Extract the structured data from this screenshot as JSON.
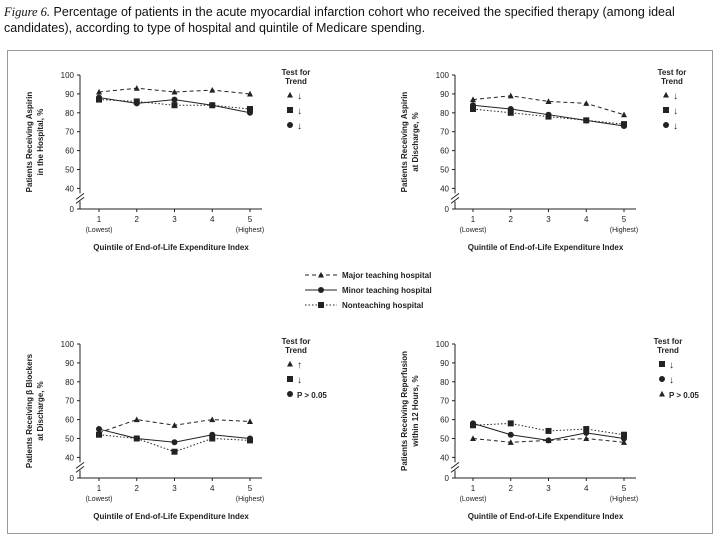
{
  "caption": {
    "label": "Figure 6.",
    "text": "Percentage of patients in the acute myocardial infarction cohort who received the specified therapy (among ideal candidates), according to type of hospital and quintile of Medicare spending."
  },
  "legend": {
    "major": "Major teaching hospital",
    "minor": "Minor teaching hospital",
    "non": "Nonteaching hospital"
  },
  "colors": {
    "line": "#222222",
    "frame": "#9a9a9a"
  },
  "chart_data": [
    {
      "type": "line",
      "ylabel": [
        "Patients Receiving Aspirin",
        "in the Hospital, %"
      ],
      "xlabel": "Quintile of End-of-Life Expenditure Index",
      "x": [
        1,
        2,
        3,
        4,
        5
      ],
      "xticks": [
        "1",
        "2",
        "3",
        "4",
        "5"
      ],
      "xsub": [
        "(Lowest)",
        "",
        "",
        "",
        "(Highest)"
      ],
      "yticks": [
        0,
        40,
        50,
        60,
        70,
        80,
        90,
        100
      ],
      "ylim": [
        0,
        100
      ],
      "series": [
        {
          "name": "Major teaching hospital",
          "values": [
            91,
            93,
            91,
            92,
            90
          ]
        },
        {
          "name": "Minor teaching hospital",
          "values": [
            88,
            85,
            87,
            84,
            80
          ]
        },
        {
          "name": "Nonteaching hospital",
          "values": [
            87,
            86,
            84,
            84,
            82
          ]
        }
      ],
      "trend_title": [
        "Test for",
        "Trend"
      ],
      "trend": [
        {
          "series": "Major teaching hospital",
          "text": "↓"
        },
        {
          "series": "Nonteaching hospital",
          "text": "↓"
        },
        {
          "series": "Minor teaching hospital",
          "text": "↓"
        }
      ]
    },
    {
      "type": "line",
      "ylabel": [
        "Patients Receiving Aspirin",
        "at Discharge, %"
      ],
      "xlabel": "Quintile of End-of-Life Expenditure Index",
      "x": [
        1,
        2,
        3,
        4,
        5
      ],
      "xticks": [
        "1",
        "2",
        "3",
        "4",
        "5"
      ],
      "xsub": [
        "(Lowest)",
        "",
        "",
        "",
        "(Highest)"
      ],
      "yticks": [
        0,
        40,
        50,
        60,
        70,
        80,
        90,
        100
      ],
      "ylim": [
        0,
        100
      ],
      "series": [
        {
          "name": "Major teaching hospital",
          "values": [
            87,
            89,
            86,
            85,
            79
          ]
        },
        {
          "name": "Minor teaching hospital",
          "values": [
            84,
            82,
            79,
            76,
            73
          ]
        },
        {
          "name": "Nonteaching hospital",
          "values": [
            82,
            80,
            78,
            76,
            74
          ]
        }
      ],
      "trend_title": [
        "Test for",
        "Trend"
      ],
      "trend": [
        {
          "series": "Major teaching hospital",
          "text": "↓"
        },
        {
          "series": "Nonteaching hospital",
          "text": "↓"
        },
        {
          "series": "Minor teaching hospital",
          "text": "↓"
        }
      ]
    },
    {
      "type": "line",
      "ylabel": [
        "Patients Receiving β Blockers",
        "at Discharge, %"
      ],
      "xlabel": "Quintile of End-of-Life Expenditure Index",
      "x": [
        1,
        2,
        3,
        4,
        5
      ],
      "xticks": [
        "1",
        "2",
        "3",
        "4",
        "5"
      ],
      "xsub": [
        "(Lowest)",
        "",
        "",
        "",
        "(Highest)"
      ],
      "yticks": [
        0,
        40,
        50,
        60,
        70,
        80,
        90,
        100
      ],
      "ylim": [
        0,
        100
      ],
      "series": [
        {
          "name": "Major teaching hospital",
          "values": [
            53,
            60,
            57,
            60,
            59
          ]
        },
        {
          "name": "Minor teaching hospital",
          "values": [
            55,
            50,
            48,
            52,
            50
          ]
        },
        {
          "name": "Nonteaching hospital",
          "values": [
            52,
            50,
            43,
            50,
            49
          ]
        }
      ],
      "trend_title": [
        "Test for",
        "Trend"
      ],
      "trend": [
        {
          "series": "Major teaching hospital",
          "text": "↑"
        },
        {
          "series": "Nonteaching hospital",
          "text": "↓"
        },
        {
          "series": "Minor teaching hospital",
          "text": "P > 0.05"
        }
      ]
    },
    {
      "type": "line",
      "ylabel": [
        "Patients Receiving Reperfusion",
        "within 12 Hours, %"
      ],
      "xlabel": "Quintile of End-of-Life Expenditure Index",
      "x": [
        1,
        2,
        3,
        4,
        5
      ],
      "xticks": [
        "1",
        "2",
        "3",
        "4",
        "5"
      ],
      "xsub": [
        "(Lowest)",
        "",
        "",
        "",
        "(Highest)"
      ],
      "yticks": [
        0,
        40,
        50,
        60,
        70,
        80,
        90,
        100
      ],
      "ylim": [
        0,
        100
      ],
      "series": [
        {
          "name": "Major teaching hospital",
          "values": [
            50,
            48,
            49,
            50,
            48
          ]
        },
        {
          "name": "Minor teaching hospital",
          "values": [
            58,
            52,
            49,
            53,
            50
          ]
        },
        {
          "name": "Nonteaching hospital",
          "values": [
            57,
            58,
            54,
            55,
            52
          ]
        }
      ],
      "trend_title": [
        "Test for",
        "Trend"
      ],
      "trend": [
        {
          "series": "Nonteaching hospital",
          "text": "↓"
        },
        {
          "series": "Minor teaching hospital",
          "text": "↓"
        },
        {
          "series": "Major teaching hospital",
          "text": "P > 0.05"
        }
      ]
    }
  ]
}
